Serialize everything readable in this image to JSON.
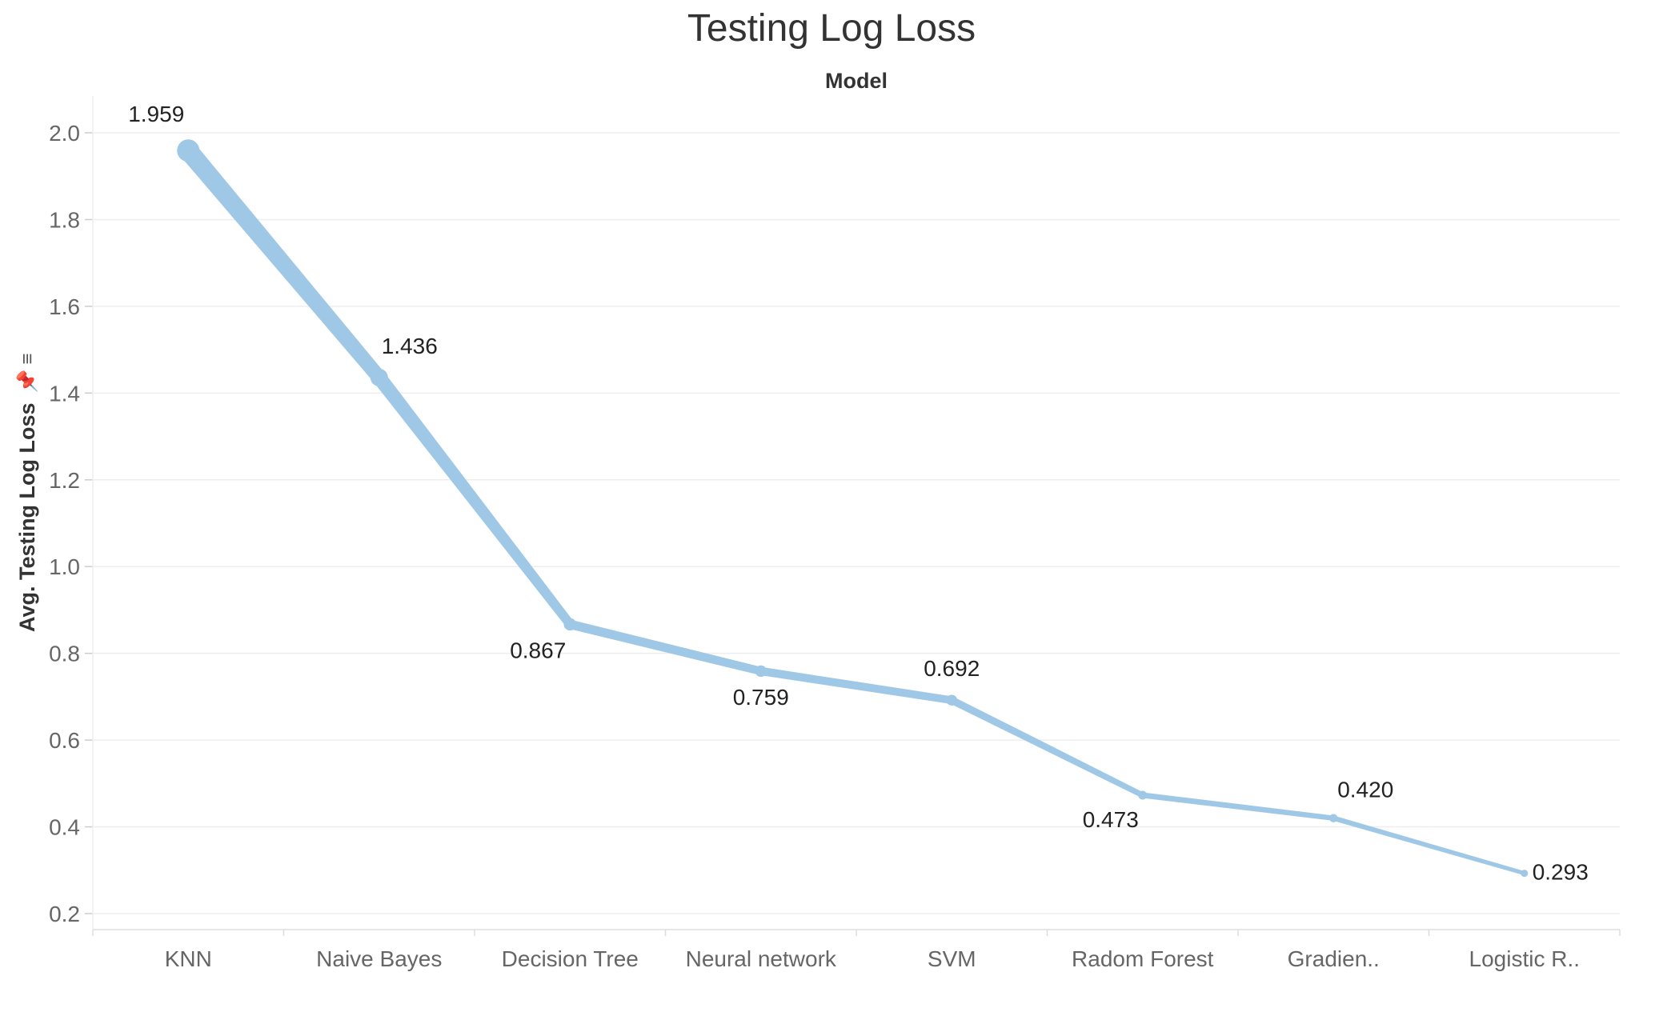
{
  "chart_data": {
    "type": "line",
    "title": "Testing Log Loss",
    "x_header": "Model",
    "ylabel": "Avg. Testing Log Loss",
    "categories": [
      "KNN",
      "Naive Bayes",
      "Decision Tree",
      "Neural network",
      "SVM",
      "Radom Forest",
      "Gradien..",
      "Logistic R.."
    ],
    "values": [
      1.959,
      1.436,
      0.867,
      0.759,
      0.692,
      0.473,
      0.42,
      0.293
    ],
    "value_labels": [
      "1.959",
      "1.436",
      "0.867",
      "0.759",
      "0.692",
      "0.473",
      "0.420",
      "0.293"
    ],
    "yticks": [
      "0.2",
      "0.4",
      "0.6",
      "0.8",
      "1.0",
      "1.2",
      "1.4",
      "1.6",
      "1.8",
      "2.0"
    ],
    "ylim": [
      0.2,
      2.0
    ],
    "line_width_encodes_value": true,
    "grid": true,
    "line_color": "#9fc8e6"
  }
}
